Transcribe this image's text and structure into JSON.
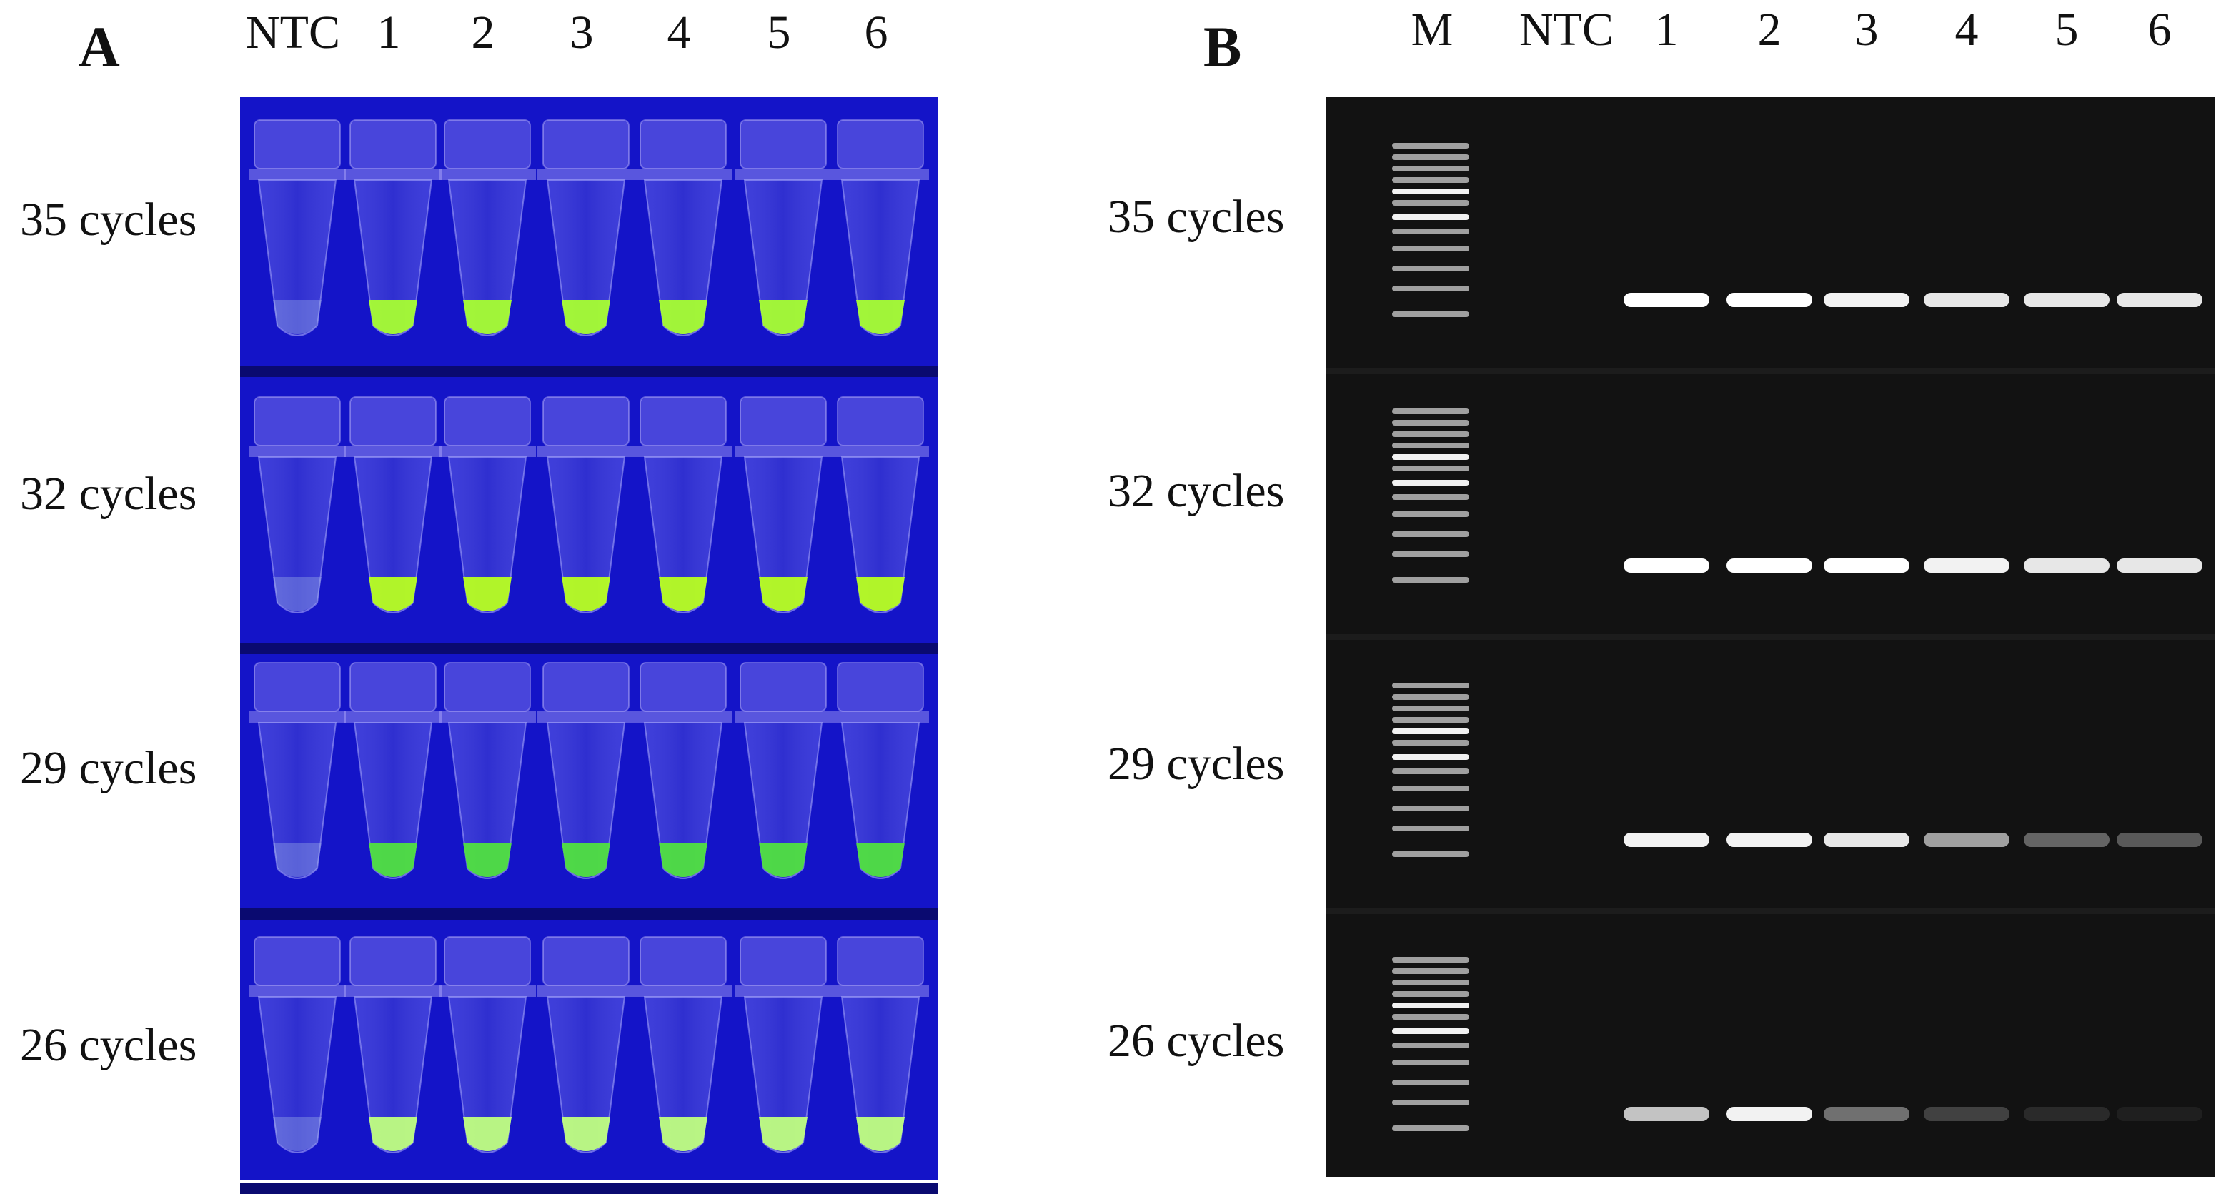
{
  "panel_a": {
    "label": "A",
    "columns": [
      "NTC",
      "1",
      "2",
      "3",
      "4",
      "5",
      "6"
    ],
    "rows": [
      "35 cycles",
      "32 cycles",
      "29 cycles",
      "26 cycles"
    ]
  },
  "panel_b": {
    "label": "B",
    "columns": [
      "M",
      "NTC",
      "1",
      "2",
      "3",
      "4",
      "5",
      "6"
    ],
    "rows": [
      "35 cycles",
      "32 cycles",
      "29 cycles",
      "26 cycles"
    ]
  }
}
